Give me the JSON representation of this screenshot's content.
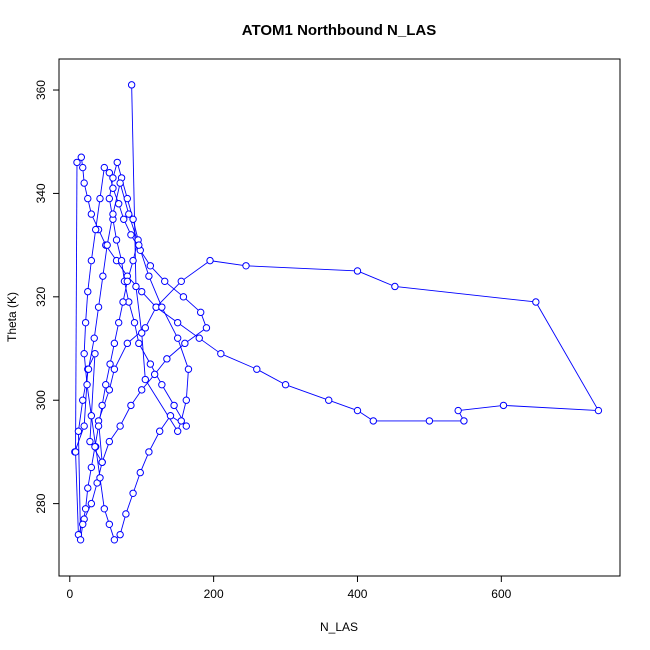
{
  "chart_data": {
    "type": "scatter",
    "title": "ATOM1 Northbound N_LAS",
    "xlabel": "N_LAS",
    "ylabel": "Theta (K)",
    "xlim": [
      -15,
      765
    ],
    "ylim": [
      266,
      366
    ],
    "xticks": [
      0,
      200,
      400,
      600
    ],
    "yticks": [
      280,
      300,
      320,
      340,
      360
    ],
    "grid": false,
    "legend": "none",
    "series_color": "#0000ff",
    "marker": "open-circle",
    "connected": true,
    "x": [
      7,
      20,
      25,
      35,
      28,
      45,
      40,
      55,
      62,
      80,
      105,
      120,
      155,
      195,
      245,
      400,
      452,
      648,
      735,
      603,
      540,
      548,
      500,
      422,
      400,
      360,
      300,
      260,
      210,
      180,
      150,
      120,
      100,
      80,
      65,
      50,
      40,
      30,
      25,
      20,
      18,
      16,
      10,
      8,
      12,
      20,
      30,
      38,
      45,
      55,
      70,
      85,
      100,
      118,
      135,
      160,
      190,
      182,
      158,
      132,
      112,
      98,
      85,
      75,
      68,
      60,
      55,
      48,
      42,
      36,
      30,
      25,
      22,
      20,
      24,
      30,
      36,
      42,
      48,
      55,
      62,
      70,
      78,
      88,
      98,
      110,
      125,
      140,
      162,
      145,
      128,
      112,
      96,
      90,
      82,
      76,
      72,
      65,
      60,
      55,
      60,
      66,
      72,
      80,
      88,
      95,
      88,
      80,
      74,
      68,
      62,
      56,
      50,
      45,
      40,
      35,
      30,
      25,
      22,
      18,
      15,
      12,
      18,
      26,
      34,
      40,
      46,
      52,
      60,
      70,
      82,
      96,
      110,
      128,
      150,
      165,
      162,
      155,
      150,
      105,
      100,
      92,
      86
    ],
    "y": [
      290,
      295,
      306,
      309,
      292,
      288,
      296,
      302,
      306,
      311,
      314,
      318,
      323,
      327,
      326,
      325,
      322,
      319,
      298,
      299,
      298,
      296,
      296,
      296,
      298,
      300,
      303,
      306,
      309,
      312,
      315,
      318,
      321,
      324,
      327,
      330,
      333,
      336,
      339,
      342,
      345,
      347,
      346,
      290,
      274,
      277,
      280,
      284,
      288,
      292,
      295,
      299,
      302,
      305,
      308,
      311,
      314,
      317,
      320,
      323,
      326,
      329,
      332,
      335,
      338,
      341,
      344,
      345,
      339,
      333,
      327,
      321,
      315,
      309,
      303,
      297,
      291,
      285,
      279,
      276,
      273,
      274,
      278,
      282,
      286,
      290,
      294,
      297,
      295,
      299,
      303,
      307,
      311,
      315,
      319,
      323,
      327,
      331,
      335,
      339,
      343,
      346,
      343,
      339,
      335,
      331,
      327,
      323,
      319,
      315,
      311,
      307,
      303,
      299,
      295,
      291,
      287,
      283,
      279,
      276,
      273,
      294,
      300,
      306,
      312,
      318,
      324,
      330,
      336,
      342,
      336,
      330,
      324,
      318,
      312,
      306,
      300,
      296,
      294,
      304,
      313,
      322,
      361
    ]
  }
}
